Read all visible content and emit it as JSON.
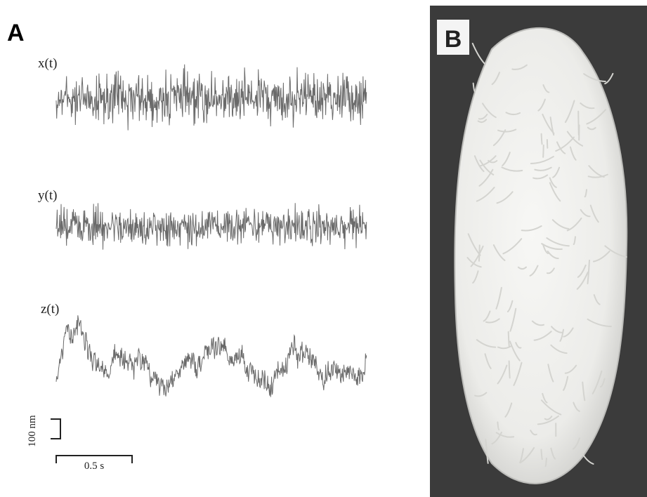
{
  "panels": {
    "a": {
      "label": "A",
      "traces": [
        {
          "label": "x(t)"
        },
        {
          "label": "y(t)"
        },
        {
          "label": "z(t)"
        }
      ],
      "scale_bars": {
        "vertical": "100 nm",
        "horizontal": "0.5 s"
      }
    },
    "b": {
      "label": "B"
    }
  }
}
